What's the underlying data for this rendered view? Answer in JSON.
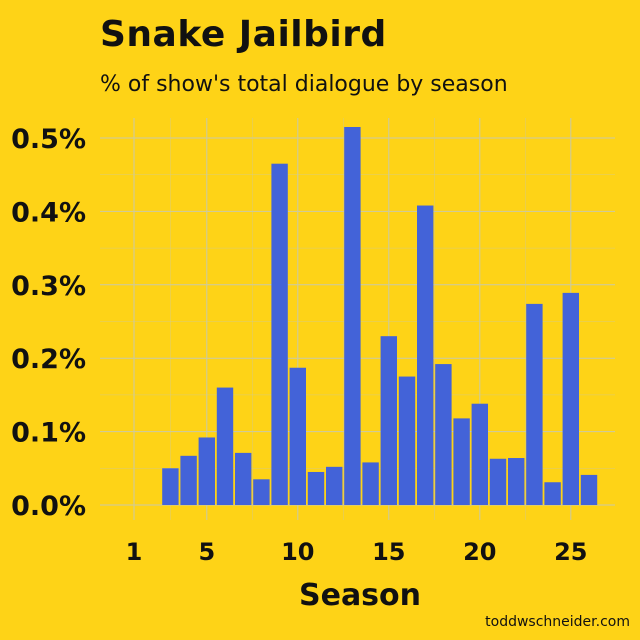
{
  "chart_data": {
    "type": "bar",
    "title": "Snake Jailbird",
    "subtitle": "% of show's total dialogue by season",
    "xlabel": "Season",
    "ylabel": "",
    "x": [
      1,
      2,
      3,
      4,
      5,
      6,
      7,
      8,
      9,
      10,
      11,
      12,
      13,
      14,
      15,
      16,
      17,
      18,
      19,
      20,
      21,
      22,
      23,
      24,
      25,
      26
    ],
    "values": [
      0,
      0,
      0.05,
      0.067,
      0.092,
      0.16,
      0.071,
      0.035,
      0.465,
      0.187,
      0.045,
      0.052,
      0.515,
      0.058,
      0.23,
      0.175,
      0.408,
      0.192,
      0.118,
      0.138,
      0.063,
      0.064,
      0.274,
      0.031,
      0.289,
      0.041
    ],
    "xticks": [
      1,
      5,
      10,
      15,
      20,
      25
    ],
    "xtick_labels": [
      "1",
      "5",
      "10",
      "15",
      "20",
      "25"
    ],
    "yticks": [
      0,
      0.1,
      0.2,
      0.3,
      0.4,
      0.5
    ],
    "ytick_labels": [
      "0.0%",
      "0.1%",
      "0.2%",
      "0.3%",
      "0.4%",
      "0.5%"
    ],
    "xlim": [
      -0.5,
      27.5
    ],
    "ylim": [
      0,
      0.5
    ],
    "grid": true,
    "bar_color": "#4363D8",
    "grid_color": "#C9C9A8"
  },
  "watermark": "toddwschneider.com"
}
